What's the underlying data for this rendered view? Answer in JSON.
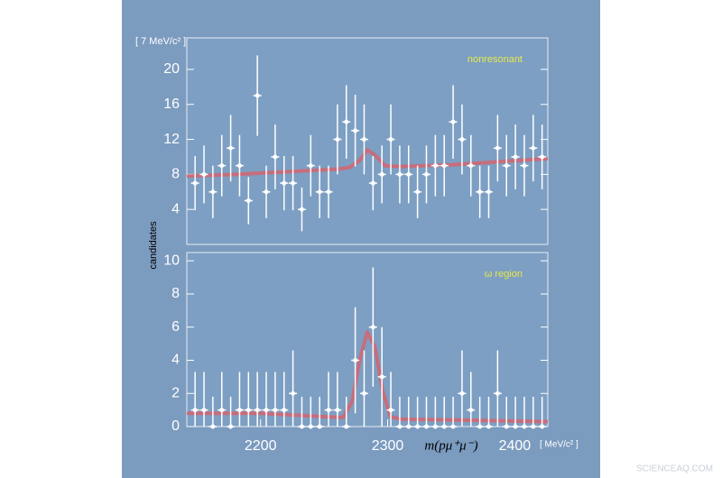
{
  "watermark": "SCIENCEAQ.COM",
  "chart_data": [
    {
      "type": "errorbar",
      "label": "nonresonant",
      "y_unit": "[ 7 MeV/c² ]",
      "ylabel": "candidates",
      "xlim": [
        2142,
        2426
      ],
      "ylim": [
        0,
        23.6
      ],
      "yticks": [
        4,
        8,
        12,
        16,
        20
      ],
      "x": [
        2148.5,
        2155.5,
        2162.5,
        2169.5,
        2176.5,
        2183.5,
        2190.5,
        2197.5,
        2204.5,
        2211.5,
        2218.5,
        2225.5,
        2232.5,
        2239.5,
        2246.5,
        2253.5,
        2260.5,
        2267.5,
        2274.5,
        2281.5,
        2288.5,
        2295.5,
        2302.5,
        2309.5,
        2316.5,
        2323.5,
        2330.5,
        2337.5,
        2344.5,
        2351.5,
        2358.5,
        2365.5,
        2372.5,
        2379.5,
        2386.5,
        2393.5,
        2400.5,
        2407.5,
        2414.5,
        2421.5
      ],
      "values": [
        7,
        8,
        6,
        9,
        11,
        9,
        5,
        17,
        6,
        10,
        7,
        7,
        4,
        9,
        6,
        6,
        12,
        14,
        13,
        12,
        7,
        8,
        12,
        8,
        8,
        6,
        8,
        9,
        9,
        14,
        12,
        9,
        6,
        6,
        11,
        9,
        10,
        9,
        11,
        10
      ],
      "errors": [
        3.1,
        3.3,
        3.0,
        3.5,
        3.8,
        3.5,
        2.7,
        4.6,
        3.0,
        3.7,
        3.1,
        3.1,
        2.5,
        3.5,
        3.0,
        3.0,
        4.0,
        4.2,
        4.1,
        4.0,
        3.1,
        3.3,
        4.0,
        3.3,
        3.3,
        3.0,
        3.3,
        3.5,
        3.5,
        4.2,
        4.0,
        3.5,
        3.0,
        3.0,
        3.8,
        3.5,
        3.7,
        3.5,
        3.8,
        3.7
      ],
      "color": "#ffffff",
      "fit": {
        "color": "#d9606a",
        "x": [
          2142,
          2180,
          2220,
          2260,
          2270,
          2278,
          2284,
          2290,
          2298,
          2310,
          2350,
          2426
        ],
        "y": [
          7.8,
          8.0,
          8.3,
          8.6,
          8.8,
          9.6,
          10.8,
          10.2,
          9.0,
          8.9,
          9.1,
          9.8
        ]
      }
    },
    {
      "type": "errorbar",
      "label": "ω region",
      "xlabel": "m(pμ⁺μ⁻)",
      "x_unit": "[ MeV/c² ]",
      "xlim": [
        2142,
        2426
      ],
      "ylim": [
        0,
        10.5
      ],
      "yticks": [
        0,
        2,
        4,
        6,
        8,
        10
      ],
      "xticks": [
        2200,
        2300,
        2400
      ],
      "x": [
        2148.5,
        2155.5,
        2162.5,
        2169.5,
        2176.5,
        2183.5,
        2190.5,
        2197.5,
        2204.5,
        2211.5,
        2218.5,
        2225.5,
        2232.5,
        2239.5,
        2246.5,
        2253.5,
        2260.5,
        2267.5,
        2274.5,
        2281.5,
        2288.5,
        2295.5,
        2302.5,
        2309.5,
        2316.5,
        2323.5,
        2330.5,
        2337.5,
        2344.5,
        2351.5,
        2358.5,
        2365.5,
        2372.5,
        2379.5,
        2386.5,
        2393.5,
        2400.5,
        2407.5,
        2414.5,
        2421.5
      ],
      "values": [
        1,
        1,
        0,
        1,
        0,
        1,
        1,
        1,
        1,
        1,
        1,
        2,
        0,
        0,
        0,
        1,
        1,
        0,
        4,
        2,
        6,
        3,
        1,
        0,
        0,
        0,
        0,
        0,
        0,
        0,
        2,
        1,
        0,
        0,
        2,
        0,
        0,
        0,
        0,
        0
      ],
      "errors": [
        2.3,
        2.3,
        1.8,
        2.3,
        1.8,
        2.3,
        2.3,
        2.3,
        2.3,
        2.3,
        2.3,
        2.6,
        1.8,
        1.8,
        1.8,
        2.3,
        2.3,
        1.8,
        3.2,
        2.6,
        3.6,
        3.0,
        2.3,
        1.8,
        1.8,
        1.8,
        1.8,
        1.8,
        1.8,
        1.8,
        2.6,
        2.3,
        1.8,
        1.8,
        2.6,
        1.8,
        1.8,
        1.8,
        1.8,
        1.8
      ],
      "color": "#ffffff",
      "fit": {
        "color": "#d9606a",
        "x": [
          2142,
          2200,
          2250,
          2265,
          2272,
          2278,
          2284,
          2290,
          2296,
          2302,
          2310,
          2350,
          2426
        ],
        "y": [
          0.8,
          0.8,
          0.6,
          0.55,
          1.5,
          4.0,
          5.7,
          4.8,
          2.2,
          0.6,
          0.45,
          0.4,
          0.3
        ]
      }
    }
  ]
}
